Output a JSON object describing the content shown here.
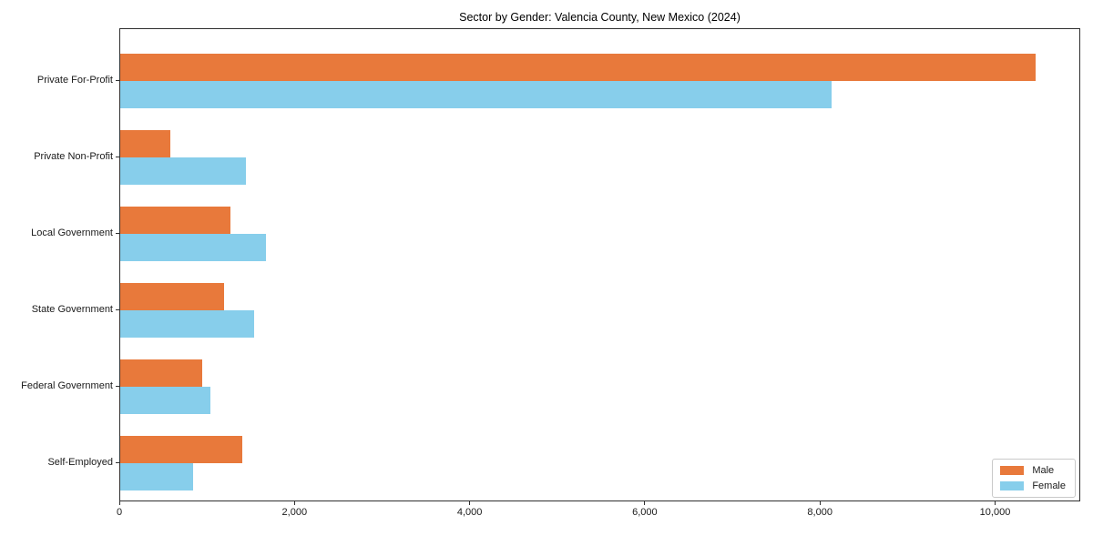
{
  "chart_data": {
    "type": "bar",
    "orientation": "horizontal",
    "title": "Sector by Gender: Valencia County, New Mexico (2024)",
    "categories": [
      "Private For-Profit",
      "Private Non-Profit",
      "Local Government",
      "State Government",
      "Federal Government",
      "Self-Employed"
    ],
    "series": [
      {
        "name": "Male",
        "color": "#e8793b",
        "values": [
          10450,
          570,
          1260,
          1190,
          940,
          1390
        ]
      },
      {
        "name": "Female",
        "color": "#87ceeb",
        "values": [
          8120,
          1430,
          1660,
          1530,
          1030,
          830
        ]
      }
    ],
    "xlabel": "",
    "ylabel": "",
    "xlim": [
      0,
      10972
    ],
    "xticks": [
      0,
      2000,
      4000,
      6000,
      8000,
      10000
    ],
    "xtick_labels": [
      "0",
      "2,000",
      "4,000",
      "6,000",
      "8,000",
      "10,000"
    ],
    "grid": false,
    "legend": {
      "position": "lower right",
      "entries": [
        "Male",
        "Female"
      ]
    },
    "colors": {
      "male": "#e8793b",
      "female": "#87ceeb",
      "spine": "#2f2f2f",
      "legend_border": "#c9c9c9",
      "background": "#ffffff"
    }
  }
}
